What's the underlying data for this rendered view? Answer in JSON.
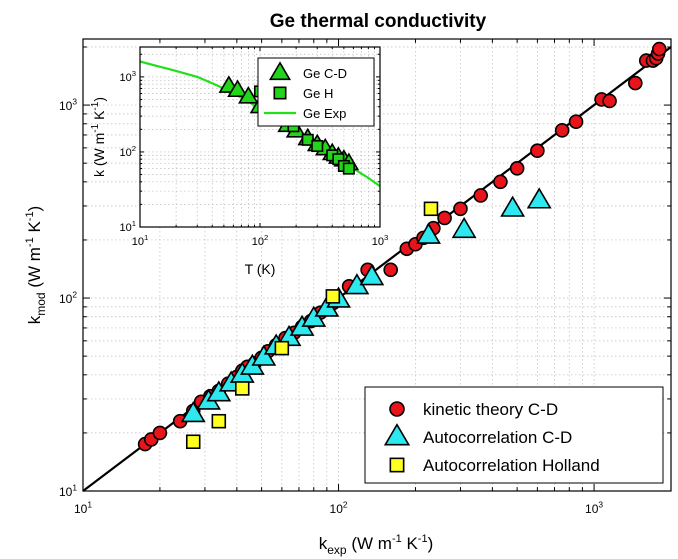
{
  "chart_data": [
    {
      "type": "scatter",
      "title": "Ge thermal conductivity",
      "xlabel": {
        "main": "k",
        "sub": "exp",
        "unit": "(W m",
        "exp1": "-1",
        "mid": " K",
        "exp2": "-1",
        "end": ")"
      },
      "ylabel": {
        "main": "k",
        "sub": "mod",
        "unit": "(W m",
        "exp1": "-1",
        "mid": " K",
        "exp2": "-1",
        "end": ")"
      },
      "xscale": "log",
      "yscale": "log",
      "xlim": [
        10,
        2000
      ],
      "ylim": [
        10,
        2200
      ],
      "grid": true,
      "legend_position": "bottom-right",
      "ticks": [
        {
          "value": 10,
          "base": "10",
          "exp": "1"
        },
        {
          "value": 100,
          "base": "10",
          "exp": "2"
        },
        {
          "value": 1000,
          "base": "10",
          "exp": "3"
        }
      ],
      "reference_line": [
        [
          10,
          10
        ],
        [
          2000,
          2000
        ]
      ],
      "series": [
        {
          "name": "kinetic theory C-D",
          "marker": "circle",
          "color": "#e8141b",
          "x": [
            17.5,
            18.5,
            20,
            24,
            27,
            29,
            31.5,
            34,
            37,
            40,
            42,
            44,
            47,
            50,
            53,
            57,
            62,
            67,
            72,
            78,
            85,
            95,
            110,
            130,
            160,
            185,
            200,
            215,
            235,
            260,
            300,
            360,
            430,
            500,
            600,
            750,
            850,
            1070,
            1150,
            1450,
            1600,
            1700,
            1750,
            1780,
            1800
          ],
          "y": [
            17.5,
            18.5,
            20,
            23,
            26,
            29,
            31,
            33,
            36,
            39,
            42,
            44,
            46,
            49,
            53,
            57,
            62,
            66,
            71,
            76,
            84,
            94,
            115,
            140,
            140,
            180,
            190,
            205,
            230,
            260,
            290,
            340,
            400,
            470,
            580,
            740,
            820,
            1070,
            1050,
            1300,
            1700,
            1700,
            1750,
            1850,
            1950
          ]
        },
        {
          "name": "Autocorrelation C-D",
          "marker": "triangle",
          "color": "#2ee8f0",
          "x": [
            27,
            31,
            34,
            38,
            42,
            46,
            51,
            57,
            64,
            72,
            80,
            90,
            100,
            118,
            135,
            225,
            310,
            480,
            610
          ],
          "y": [
            25,
            29,
            32,
            36,
            40,
            44,
            49,
            56,
            62,
            70,
            78,
            88,
            98,
            115,
            128,
            210,
            225,
            290,
            320
          ]
        },
        {
          "name": "Autocorrelation Holland",
          "marker": "square",
          "color": "#ffff22",
          "x": [
            27,
            34,
            42,
            60,
            95,
            230
          ],
          "y": [
            18,
            23,
            34,
            55,
            102,
            290
          ]
        }
      ]
    },
    {
      "type": "scatter",
      "xlabel": "T (K)",
      "ylabel": {
        "main": "k (W m",
        "exp1": "-1",
        "mid": " K",
        "exp2": "-1",
        "end": ")"
      },
      "xscale": "log",
      "yscale": "log",
      "xlim": [
        10,
        1000
      ],
      "ylim": [
        10,
        2500
      ],
      "grid": true,
      "legend_position": "top-right",
      "ticks_x": [
        {
          "value": 10,
          "base": "10",
          "exp": "1"
        },
        {
          "value": 100,
          "base": "10",
          "exp": "2"
        },
        {
          "value": 1000,
          "base": "10",
          "exp": "3"
        }
      ],
      "ticks_y": [
        {
          "value": 10,
          "base": "10",
          "exp": "1"
        },
        {
          "value": 100,
          "base": "10",
          "exp": "2"
        },
        {
          "value": 1000,
          "base": "10",
          "exp": "3"
        }
      ],
      "series": [
        {
          "name": "Ge C-D",
          "marker": "triangle",
          "color": "#22d41a",
          "x": [
            55,
            65,
            80,
            100,
            140,
            170,
            200,
            250,
            300,
            350,
            400,
            450,
            500,
            550
          ],
          "y": [
            750,
            660,
            540,
            400,
            275,
            225,
            190,
            150,
            125,
            110,
            95,
            85,
            78,
            70
          ]
        },
        {
          "name": "Ge H",
          "marker": "square",
          "color": "#22d41a",
          "x": [
            100,
            190,
            250,
            300,
            400,
            450,
            500,
            550
          ],
          "y": [
            640,
            220,
            145,
            120,
            90,
            80,
            65,
            60
          ]
        },
        {
          "name": "Ge Exp",
          "marker": "line",
          "color": "#22e01a",
          "x": [
            10,
            15,
            20,
            30,
            40,
            50,
            60,
            80,
            100,
            150,
            200,
            300,
            400,
            500,
            600,
            800,
            1000
          ],
          "y": [
            1600,
            1350,
            1200,
            1000,
            820,
            700,
            600,
            470,
            370,
            240,
            180,
            120,
            90,
            72,
            60,
            45,
            35
          ]
        }
      ]
    }
  ]
}
